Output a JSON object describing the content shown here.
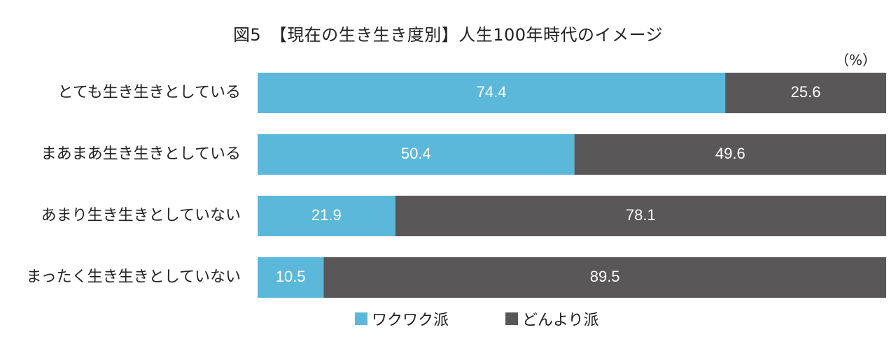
{
  "chart_data": {
    "type": "bar",
    "orientation": "horizontal",
    "stacked": true,
    "title": "図5　【現在の生き生き度別】人生100年時代のイメージ",
    "unit_label": "（%）",
    "categories": [
      "とても生き生きとしている",
      "まあまあ生き生きとしている",
      "あまり生き生きとしていない",
      "まったく生き生きとしていない"
    ],
    "series": [
      {
        "name": "ワクワク派",
        "values": [
          74.4,
          50.4,
          21.9,
          10.5
        ],
        "color": "#5bb8db"
      },
      {
        "name": "どんより派",
        "values": [
          25.6,
          49.6,
          78.1,
          89.5
        ],
        "color": "#595757"
      }
    ],
    "xlim": [
      0,
      100
    ],
    "grid": false,
    "legend_position": "bottom"
  }
}
